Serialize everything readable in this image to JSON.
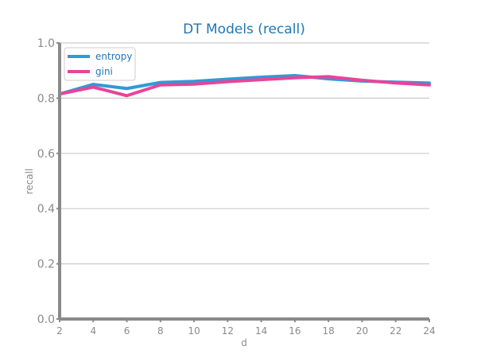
{
  "chart_data": {
    "type": "line",
    "title": "DT Models (recall)",
    "xlabel": "d",
    "ylabel": "recall",
    "x": [
      2,
      4,
      6,
      8,
      10,
      12,
      14,
      16,
      18,
      20,
      22,
      24
    ],
    "xlim": [
      2,
      24
    ],
    "ylim": [
      0.0,
      1.0
    ],
    "xticks": [
      2,
      4,
      6,
      8,
      10,
      12,
      14,
      16,
      18,
      20,
      22,
      24
    ],
    "yticks": [
      0.0,
      0.2,
      0.4,
      0.6,
      0.8,
      1.0
    ],
    "grid": "horizontal",
    "legend_position": "top-left",
    "series": [
      {
        "name": "entropy",
        "color": "#2d9bd6",
        "values": [
          0.815,
          0.85,
          0.835,
          0.857,
          0.861,
          0.869,
          0.876,
          0.882,
          0.87,
          0.862,
          0.858,
          0.855
        ]
      },
      {
        "name": "gini",
        "color": "#e8449a",
        "values": [
          0.815,
          0.84,
          0.809,
          0.848,
          0.851,
          0.86,
          0.867,
          0.874,
          0.878,
          0.865,
          0.855,
          0.848
        ]
      }
    ]
  }
}
